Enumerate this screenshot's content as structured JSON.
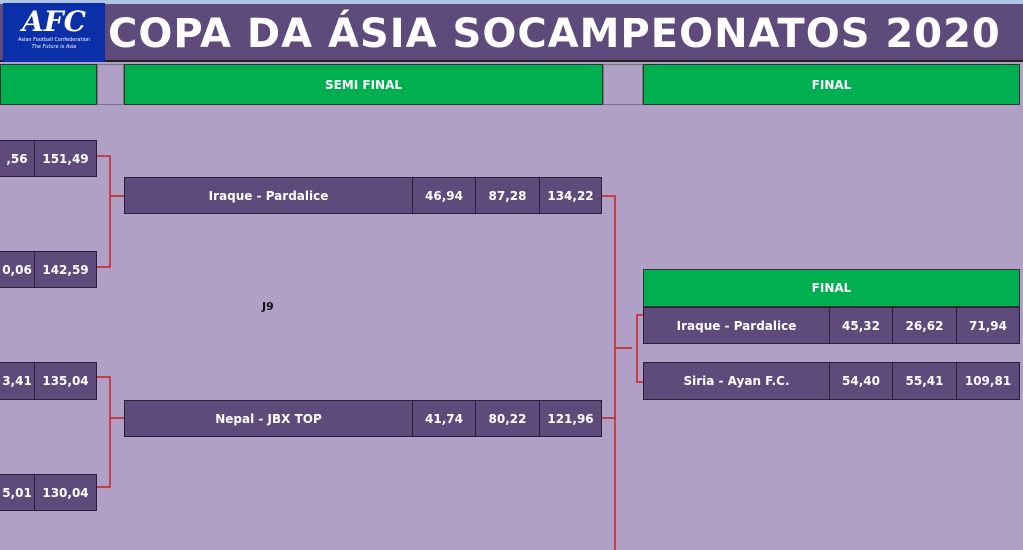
{
  "header": {
    "title": "COPA DA ÁSIA SOCAMPEONATOS 2020",
    "logo_text": "AFC",
    "logo_sub": "Asian Football Confederation",
    "logo_tagline": "The Future is Asia"
  },
  "columns": {
    "semi": "SEMI FINAL",
    "final": "FINAL"
  },
  "quarter": [
    {
      "score2": ",56",
      "total": "151,49"
    },
    {
      "score2": "0,06",
      "total": "142,59"
    },
    {
      "score2": "3,41",
      "total": "135,04"
    },
    {
      "score2": "5,01",
      "total": "130,04"
    }
  ],
  "semi": [
    {
      "team": "Iraque - Pardalice",
      "s1": "46,94",
      "s2": "87,28",
      "total": "134,22"
    },
    {
      "team": "Nepal - JBX TOP",
      "s1": "41,74",
      "s2": "80,22",
      "total": "121,96"
    }
  ],
  "label_j9": "J9",
  "final": {
    "title": "FINAL",
    "rows": [
      {
        "team": "Iraque - Pardalice",
        "s1": "45,32",
        "s2": "26,62",
        "total": "71,94"
      },
      {
        "team": "Siria - Ayan F.C.",
        "s1": "54,40",
        "s2": "55,41",
        "total": "109,81"
      }
    ]
  },
  "colors": {
    "purple": "#5e4b7b",
    "green": "#00b050",
    "background": "#b0a0c6",
    "connector": "#cc1f1f"
  }
}
